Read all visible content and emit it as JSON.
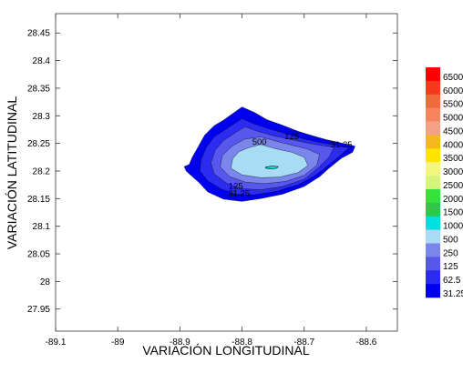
{
  "chart_data": {
    "type": "contour",
    "xlabel": "VARIACIÓN LONGITUDINAL",
    "ylabel": "VARIACIÓN LATITUDINAL",
    "xlim": [
      -89.1,
      -88.55
    ],
    "ylim": [
      27.91,
      28.485
    ],
    "x_ticks": [
      {
        "value": -89.1,
        "label": "-89.1"
      },
      {
        "value": -89.0,
        "label": "-89"
      },
      {
        "value": -88.9,
        "label": "-88.9"
      },
      {
        "value": -88.8,
        "label": "-88.8"
      },
      {
        "value": -88.7,
        "label": "-88.7"
      },
      {
        "value": -88.6,
        "label": "-88.6"
      }
    ],
    "y_ticks": [
      {
        "value": 28.45,
        "label": "28.45"
      },
      {
        "value": 28.4,
        "label": "28.4"
      },
      {
        "value": 28.35,
        "label": "28.35"
      },
      {
        "value": 28.3,
        "label": "28.3"
      },
      {
        "value": 28.25,
        "label": "28.25"
      },
      {
        "value": 28.2,
        "label": "28.2"
      },
      {
        "value": 28.15,
        "label": "28.15"
      },
      {
        "value": 28.1,
        "label": "28.1"
      },
      {
        "value": 28.05,
        "label": "28.05"
      },
      {
        "value": 28.0,
        "label": "28"
      },
      {
        "value": 27.95,
        "label": "27.95"
      }
    ],
    "legend": [
      {
        "label": "6500",
        "color": "#ff0000"
      },
      {
        "label": "6000",
        "color": "#f53a1c"
      },
      {
        "label": "5500",
        "color": "#f26a3a"
      },
      {
        "label": "5000",
        "color": "#f7845c"
      },
      {
        "label": "4500",
        "color": "#f6a086"
      },
      {
        "label": "4000",
        "color": "#f5b81e"
      },
      {
        "label": "3500",
        "color": "#ffe400"
      },
      {
        "label": "3000",
        "color": "#f4f77a"
      },
      {
        "label": "2500",
        "color": "#d4f57a"
      },
      {
        "label": "2000",
        "color": "#32e43a"
      },
      {
        "label": "1500",
        "color": "#2ec84a"
      },
      {
        "label": "1000",
        "color": "#00e0e0"
      },
      {
        "label": "500",
        "color": "#a8dcf5"
      },
      {
        "label": "250",
        "color": "#7b86ec"
      },
      {
        "label": "125",
        "color": "#5757ee"
      },
      {
        "label": "62.5",
        "color": "#2c2cf0"
      },
      {
        "label": "31.25",
        "color": "#0000ee"
      }
    ],
    "contours": [
      {
        "level": "31.25",
        "color": "#0000ee",
        "points": [
          [
            -88.83,
            28.292
          ],
          [
            -88.8,
            28.316
          ],
          [
            -88.78,
            28.306
          ],
          [
            -88.76,
            28.293
          ],
          [
            -88.735,
            28.283
          ],
          [
            -88.71,
            28.272
          ],
          [
            -88.69,
            28.265
          ],
          [
            -88.665,
            28.257
          ],
          [
            -88.645,
            28.252
          ],
          [
            -88.618,
            28.245
          ],
          [
            -88.622,
            28.234
          ],
          [
            -88.64,
            28.223
          ],
          [
            -88.66,
            28.205
          ],
          [
            -88.675,
            28.19
          ],
          [
            -88.7,
            28.172
          ],
          [
            -88.735,
            28.158
          ],
          [
            -88.77,
            28.15
          ],
          [
            -88.8,
            28.145
          ],
          [
            -88.83,
            28.149
          ],
          [
            -88.855,
            28.162
          ],
          [
            -88.87,
            28.18
          ],
          [
            -88.88,
            28.19
          ],
          [
            -88.89,
            28.2
          ],
          [
            -88.893,
            28.208
          ],
          [
            -88.885,
            28.212
          ],
          [
            -88.88,
            28.225
          ],
          [
            -88.87,
            28.245
          ],
          [
            -88.86,
            28.265
          ],
          [
            -88.845,
            28.282
          ]
        ]
      },
      {
        "level": "62.5",
        "color": "#2c2cf0",
        "points": [
          [
            -88.82,
            28.28
          ],
          [
            -88.8,
            28.295
          ],
          [
            -88.78,
            28.285
          ],
          [
            -88.755,
            28.276
          ],
          [
            -88.73,
            28.268
          ],
          [
            -88.7,
            28.258
          ],
          [
            -88.675,
            28.252
          ],
          [
            -88.645,
            28.246
          ],
          [
            -88.628,
            28.242
          ],
          [
            -88.645,
            28.225
          ],
          [
            -88.665,
            28.207
          ],
          [
            -88.685,
            28.19
          ],
          [
            -88.71,
            28.175
          ],
          [
            -88.745,
            28.163
          ],
          [
            -88.78,
            28.157
          ],
          [
            -88.81,
            28.158
          ],
          [
            -88.835,
            28.168
          ],
          [
            -88.855,
            28.182
          ],
          [
            -88.868,
            28.2
          ],
          [
            -88.866,
            28.22
          ],
          [
            -88.858,
            28.242
          ],
          [
            -88.845,
            28.262
          ]
        ]
      },
      {
        "level": "125",
        "color": "#5757ee",
        "points": [
          [
            -88.81,
            28.27
          ],
          [
            -88.795,
            28.28
          ],
          [
            -88.775,
            28.272
          ],
          [
            -88.75,
            28.264
          ],
          [
            -88.725,
            28.258
          ],
          [
            -88.7,
            28.252
          ],
          [
            -88.675,
            28.247
          ],
          [
            -88.652,
            28.243
          ],
          [
            -88.66,
            28.225
          ],
          [
            -88.678,
            28.205
          ],
          [
            -88.7,
            28.185
          ],
          [
            -88.735,
            28.172
          ],
          [
            -88.77,
            28.166
          ],
          [
            -88.8,
            28.168
          ],
          [
            -88.825,
            28.178
          ],
          [
            -88.845,
            28.195
          ],
          [
            -88.85,
            28.215
          ],
          [
            -88.843,
            28.238
          ],
          [
            -88.83,
            28.255
          ]
        ]
      },
      {
        "level": "250",
        "color": "#7b86ec",
        "points": [
          [
            -88.795,
            28.258
          ],
          [
            -88.77,
            28.262
          ],
          [
            -88.745,
            28.254
          ],
          [
            -88.72,
            28.247
          ],
          [
            -88.695,
            28.24
          ],
          [
            -88.675,
            28.23
          ],
          [
            -88.68,
            28.21
          ],
          [
            -88.7,
            28.192
          ],
          [
            -88.73,
            28.181
          ],
          [
            -88.765,
            28.177
          ],
          [
            -88.795,
            28.18
          ],
          [
            -88.82,
            28.19
          ],
          [
            -88.835,
            28.207
          ],
          [
            -88.832,
            28.228
          ],
          [
            -88.815,
            28.246
          ]
        ]
      },
      {
        "level": "500",
        "color": "#a8dcf5",
        "points": [
          [
            -88.79,
            28.242
          ],
          [
            -88.77,
            28.248
          ],
          [
            -88.745,
            28.24
          ],
          [
            -88.72,
            28.234
          ],
          [
            -88.7,
            28.225
          ],
          [
            -88.694,
            28.21
          ],
          [
            -88.71,
            28.197
          ],
          [
            -88.74,
            28.189
          ],
          [
            -88.77,
            28.188
          ],
          [
            -88.8,
            28.193
          ],
          [
            -88.818,
            28.205
          ],
          [
            -88.815,
            28.222
          ],
          [
            -88.805,
            28.235
          ]
        ]
      },
      {
        "level": "1000",
        "color": "#00e0e0",
        "points": [
          [
            -88.762,
            28.207
          ],
          [
            -88.752,
            28.209
          ],
          [
            -88.742,
            28.208
          ],
          [
            -88.744,
            28.205
          ],
          [
            -88.754,
            28.204
          ],
          [
            -88.762,
            28.205
          ]
        ]
      }
    ],
    "contour_labels": [
      {
        "text": "500",
        "x": -88.772,
        "y": 28.248
      },
      {
        "text": "125",
        "x": -88.72,
        "y": 28.258
      },
      {
        "text": "31.25",
        "x": -88.64,
        "y": 28.243
      },
      {
        "text": "125",
        "x": -88.81,
        "y": 28.168
      },
      {
        "text": "31.25",
        "x": -88.805,
        "y": 28.155
      }
    ]
  }
}
